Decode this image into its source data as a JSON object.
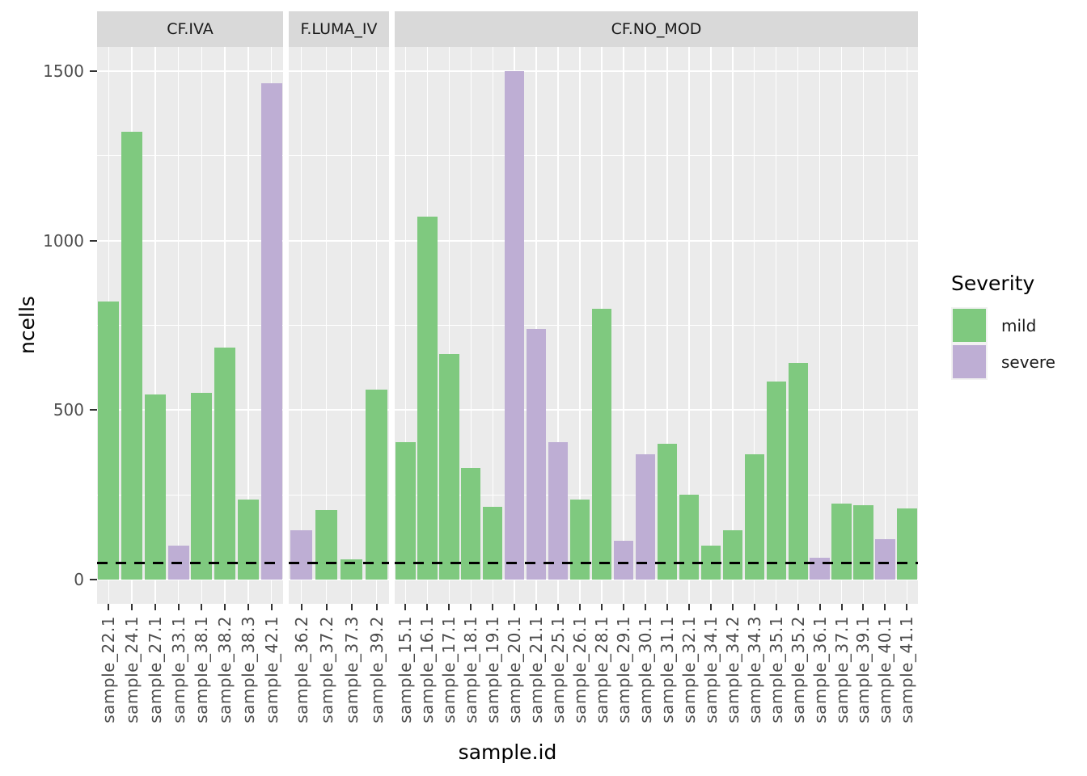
{
  "chart_data": {
    "type": "bar",
    "title": "",
    "xlabel": "sample.id",
    "ylabel": "ncells",
    "ylim": [
      0,
      1500
    ],
    "yticks": [
      0,
      500,
      1000,
      1500
    ],
    "minor_breaks": [
      250,
      750,
      1250
    ],
    "grid": true,
    "reference_line": {
      "value": 50,
      "style": "dashed",
      "color": "#000000"
    },
    "legend": {
      "title": "Severity",
      "position": "right",
      "entries": [
        {
          "label": "mild",
          "color": "#7FC97F"
        },
        {
          "label": "severe",
          "color": "#BEAED4"
        }
      ]
    },
    "facets": [
      {
        "label": "CF.IVA",
        "bars": [
          {
            "sample": "sample_22.1",
            "value": 820,
            "severity": "mild"
          },
          {
            "sample": "sample_24.1",
            "value": 1320,
            "severity": "mild"
          },
          {
            "sample": "sample_27.1",
            "value": 545,
            "severity": "mild"
          },
          {
            "sample": "sample_33.1",
            "value": 100,
            "severity": "severe"
          },
          {
            "sample": "sample_38.1",
            "value": 550,
            "severity": "mild"
          },
          {
            "sample": "sample_38.2",
            "value": 685,
            "severity": "mild"
          },
          {
            "sample": "sample_38.3",
            "value": 235,
            "severity": "mild"
          },
          {
            "sample": "sample_42.1",
            "value": 1465,
            "severity": "severe"
          }
        ]
      },
      {
        "label": "F.LUMA_IV",
        "bars": [
          {
            "sample": "sample_36.2",
            "value": 145,
            "severity": "severe"
          },
          {
            "sample": "sample_37.2",
            "value": 205,
            "severity": "mild"
          },
          {
            "sample": "sample_37.3",
            "value": 60,
            "severity": "mild"
          },
          {
            "sample": "sample_39.2",
            "value": 560,
            "severity": "mild"
          }
        ]
      },
      {
        "label": "CF.NO_MOD",
        "bars": [
          {
            "sample": "sample_15.1",
            "value": 405,
            "severity": "mild"
          },
          {
            "sample": "sample_16.1",
            "value": 1070,
            "severity": "mild"
          },
          {
            "sample": "sample_17.1",
            "value": 665,
            "severity": "mild"
          },
          {
            "sample": "sample_18.1",
            "value": 330,
            "severity": "mild"
          },
          {
            "sample": "sample_19.1",
            "value": 215,
            "severity": "mild"
          },
          {
            "sample": "sample_20.1",
            "value": 1500,
            "severity": "severe"
          },
          {
            "sample": "sample_21.1",
            "value": 740,
            "severity": "severe"
          },
          {
            "sample": "sample_25.1",
            "value": 405,
            "severity": "severe"
          },
          {
            "sample": "sample_26.1",
            "value": 235,
            "severity": "mild"
          },
          {
            "sample": "sample_28.1",
            "value": 800,
            "severity": "mild"
          },
          {
            "sample": "sample_29.1",
            "value": 115,
            "severity": "severe"
          },
          {
            "sample": "sample_30.1",
            "value": 370,
            "severity": "severe"
          },
          {
            "sample": "sample_31.1",
            "value": 400,
            "severity": "mild"
          },
          {
            "sample": "sample_32.1",
            "value": 250,
            "severity": "mild"
          },
          {
            "sample": "sample_34.1",
            "value": 100,
            "severity": "mild"
          },
          {
            "sample": "sample_34.2",
            "value": 145,
            "severity": "mild"
          },
          {
            "sample": "sample_34.3",
            "value": 370,
            "severity": "mild"
          },
          {
            "sample": "sample_35.1",
            "value": 585,
            "severity": "mild"
          },
          {
            "sample": "sample_35.2",
            "value": 640,
            "severity": "mild"
          },
          {
            "sample": "sample_36.1",
            "value": 65,
            "severity": "severe"
          },
          {
            "sample": "sample_37.1",
            "value": 225,
            "severity": "mild"
          },
          {
            "sample": "sample_39.1",
            "value": 220,
            "severity": "mild"
          },
          {
            "sample": "sample_40.1",
            "value": 120,
            "severity": "severe"
          },
          {
            "sample": "sample_41.1",
            "value": 210,
            "severity": "mild"
          }
        ]
      }
    ]
  },
  "style": {
    "panel_bg": "#EBEBEB",
    "strip_bg": "#D9D9D9",
    "grid_color": "#FFFFFF",
    "axis_text": "#4D4D4D",
    "tick_color": "#333333",
    "strip_text": "#1A1A1A",
    "title_color": "#000000",
    "mild_color": "#7FC97F",
    "severe_color": "#BEAED4"
  }
}
